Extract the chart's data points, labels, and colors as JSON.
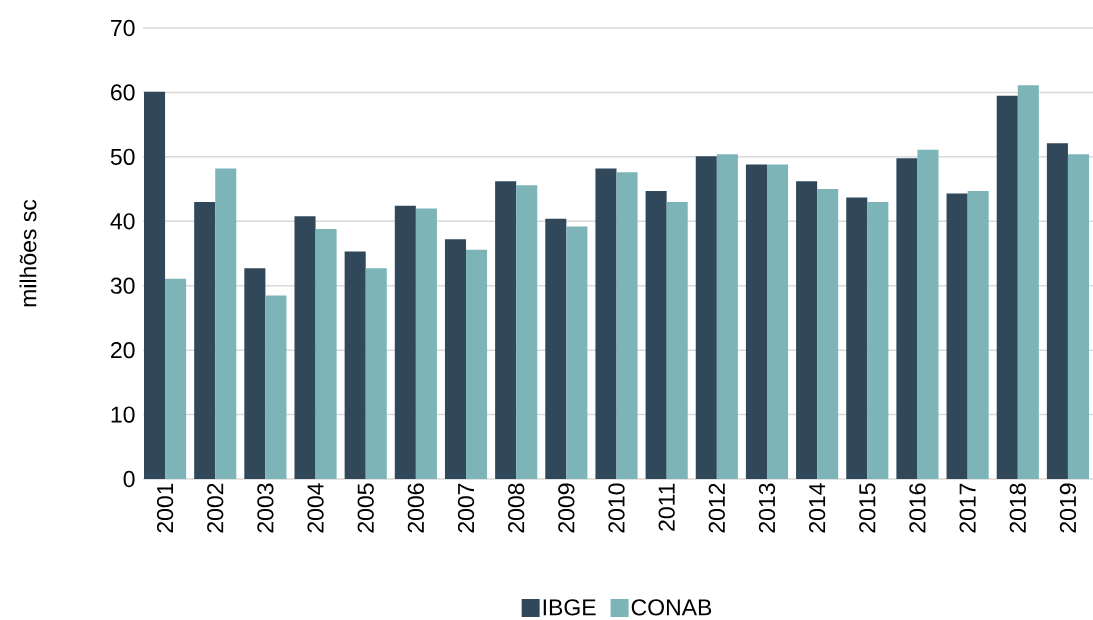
{
  "chart_data": {
    "type": "bar",
    "ylabel": "milhões sc",
    "categories": [
      "2001",
      "2002",
      "2003",
      "2004",
      "2005",
      "2006",
      "2007",
      "2008",
      "2009",
      "2010",
      "2011",
      "2012",
      "2013",
      "2014",
      "2015",
      "2016",
      "2017",
      "2018",
      "2019"
    ],
    "series": [
      {
        "name": "IBGE",
        "color": "#31475a",
        "values": [
          60.1,
          43.0,
          32.7,
          40.8,
          35.3,
          42.4,
          37.2,
          46.2,
          40.4,
          48.2,
          44.7,
          50.1,
          48.8,
          46.2,
          43.7,
          49.8,
          44.3,
          59.5,
          52.1
        ]
      },
      {
        "name": "CONAB",
        "color": "#7db4b8",
        "values": [
          31.1,
          48.2,
          28.5,
          38.8,
          32.7,
          42.0,
          35.6,
          45.6,
          39.2,
          47.6,
          43.0,
          50.4,
          48.8,
          45.0,
          43.0,
          51.1,
          44.7,
          61.1,
          50.4
        ]
      }
    ],
    "ylim": [
      0,
      70
    ],
    "yticks": [
      0,
      10,
      20,
      30,
      40,
      50,
      60,
      70
    ],
    "grid": "y",
    "legend": "bottom"
  }
}
